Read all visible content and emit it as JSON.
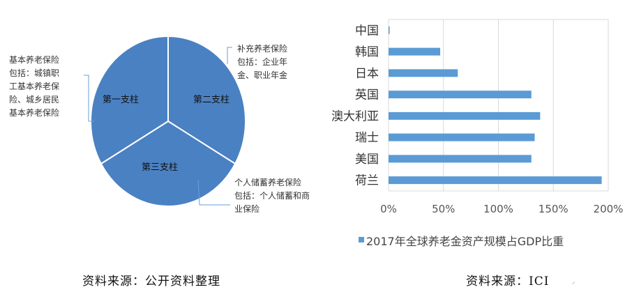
{
  "pie": {
    "type": "pie",
    "slices": [
      {
        "label": "第一支柱",
        "value": 1
      },
      {
        "label": "第二支柱",
        "value": 1
      },
      {
        "label": "第三支柱",
        "value": 1
      }
    ],
    "color": "#4a81c3",
    "annotations": {
      "first": [
        "基本养老保险",
        "包括：城镇职",
        "工基本养老保",
        "险、城乡居民",
        "基本养老保险"
      ],
      "second": [
        "补充养老保险",
        "包括：企业年",
        "金、职业年金"
      ],
      "third": [
        "个人储蓄养老保险",
        "包括：个人储蓄和商",
        "业保险"
      ]
    },
    "source": "资料来源：公开资料整理"
  },
  "chart_data": {
    "type": "bar",
    "orientation": "horizontal",
    "categories": [
      "中国",
      "韩国",
      "日本",
      "英国",
      "澳大利亚",
      "瑞士",
      "美国",
      "荷兰"
    ],
    "series": [
      {
        "name": "2017年全球养老金资产规模占GDP比重",
        "values": [
          1,
          47,
          63,
          130,
          138,
          133,
          130,
          194
        ],
        "color": "#5b9bd5"
      }
    ],
    "xlim": [
      0,
      200
    ],
    "xticks": [
      "0%",
      "50%",
      "100%",
      "150%",
      "200%"
    ],
    "grid": true,
    "legend_position": "bottom",
    "source": "资料来源：ICI"
  }
}
